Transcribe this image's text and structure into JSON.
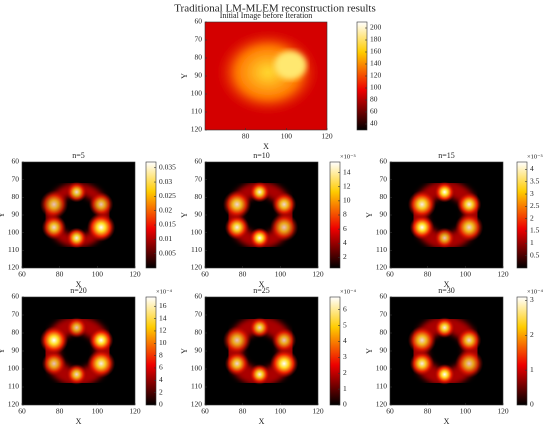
{
  "title": "Traditional LM-MLEM reconstruction results",
  "chart_data": [
    {
      "type": "heatmap",
      "title": "Initial Image before Iteration",
      "xlabel": "X",
      "ylabel": "Y",
      "xlim": [
        60,
        120
      ],
      "ylim": [
        60,
        120
      ],
      "y_reversed": true,
      "xticks": [
        80,
        100,
        120
      ],
      "yticks": [
        60,
        70,
        80,
        90,
        100,
        110,
        120
      ],
      "colormap": "hot",
      "clim": [
        30,
        210
      ],
      "cticks": [
        40,
        60,
        80,
        100,
        120,
        140,
        160,
        180,
        200
      ]
    },
    {
      "type": "heatmap",
      "title": "n=5",
      "xlabel": "X",
      "ylabel": "Y",
      "xlim": [
        60,
        120
      ],
      "ylim": [
        60,
        120
      ],
      "y_reversed": true,
      "xticks": [
        60,
        80,
        100,
        120
      ],
      "yticks": [
        60,
        70,
        80,
        90,
        100,
        110,
        120
      ],
      "colormap": "hot",
      "clim": [
        0,
        0.037
      ],
      "cticks": [
        0.005,
        0.01,
        0.015,
        0.02,
        0.025,
        0.03,
        0.035
      ]
    },
    {
      "type": "heatmap",
      "title": "n=10",
      "xlabel": "X",
      "ylabel": "Y",
      "xlim": [
        60,
        120
      ],
      "ylim": [
        60,
        120
      ],
      "y_reversed": true,
      "xticks": [
        60,
        80,
        100,
        120
      ],
      "yticks": [
        60,
        70,
        80,
        90,
        100,
        110,
        120
      ],
      "colormap": "hot",
      "clim": [
        0.5,
        15.5
      ],
      "cticks": [
        2,
        4,
        6,
        8,
        10,
        12,
        14
      ],
      "cbar_scale": "×10⁻³"
    },
    {
      "type": "heatmap",
      "title": "n=15",
      "xlabel": "X",
      "ylabel": "Y",
      "xlim": [
        60,
        120
      ],
      "ylim": [
        60,
        120
      ],
      "y_reversed": true,
      "xticks": [
        60,
        80,
        100,
        120
      ],
      "yticks": [
        60,
        70,
        80,
        90,
        100,
        110,
        120
      ],
      "colormap": "hot",
      "clim": [
        0,
        4.3
      ],
      "cticks": [
        0.5,
        1,
        1.5,
        2,
        2.5,
        3,
        3.5,
        4
      ],
      "cbar_scale": "×10⁻³"
    },
    {
      "type": "heatmap",
      "title": "n=20",
      "xlabel": "X",
      "ylabel": "Y",
      "xlim": [
        60,
        120
      ],
      "ylim": [
        60,
        120
      ],
      "y_reversed": true,
      "xticks": [
        60,
        80,
        100,
        120
      ],
      "yticks": [
        60,
        70,
        80,
        90,
        100,
        110,
        120
      ],
      "colormap": "hot",
      "clim": [
        0,
        17.5
      ],
      "cticks": [
        0,
        2,
        4,
        6,
        8,
        10,
        12,
        14,
        16
      ],
      "cbar_scale": "×10⁻⁴"
    },
    {
      "type": "heatmap",
      "title": "n=25",
      "xlabel": "X",
      "ylabel": "Y",
      "xlim": [
        60,
        120
      ],
      "ylim": [
        60,
        120
      ],
      "y_reversed": true,
      "xticks": [
        60,
        80,
        100,
        120
      ],
      "yticks": [
        60,
        70,
        80,
        90,
        100,
        110,
        120
      ],
      "colormap": "hot",
      "clim": [
        0,
        6.8
      ],
      "cticks": [
        0,
        1,
        2,
        3,
        4,
        5,
        6
      ],
      "cbar_scale": "×10⁻⁴"
    },
    {
      "type": "heatmap",
      "title": "n=30",
      "xlabel": "X",
      "ylabel": "Y",
      "xlim": [
        60,
        120
      ],
      "ylim": [
        60,
        120
      ],
      "y_reversed": true,
      "xticks": [
        60,
        80,
        100,
        120
      ],
      "yticks": [
        60,
        70,
        80,
        90,
        100,
        110,
        120
      ],
      "colormap": "hot",
      "clim": [
        0,
        3.1
      ],
      "cticks": [
        0,
        1,
        2,
        3
      ],
      "cbar_scale": "×10⁻⁴"
    }
  ]
}
